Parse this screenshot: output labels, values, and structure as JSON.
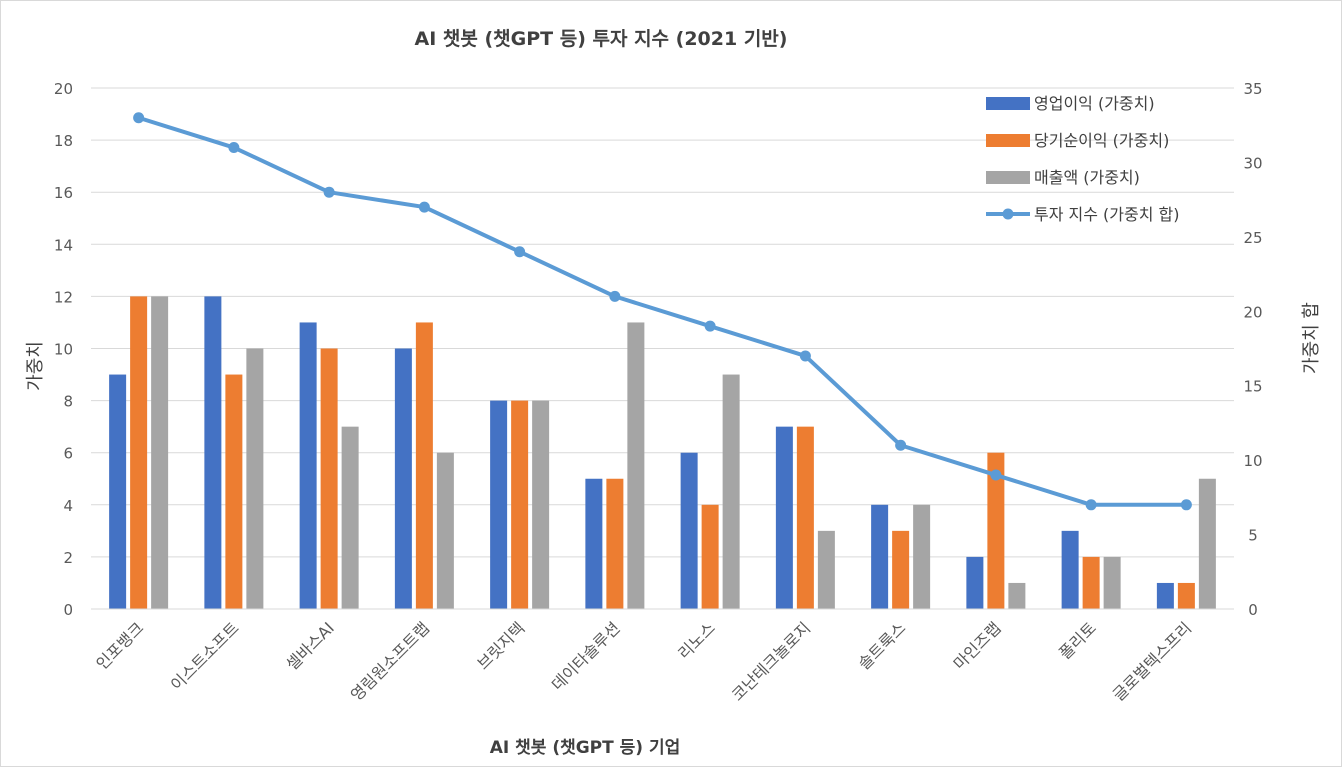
{
  "chart_data": {
    "type": "bar",
    "title": "AI 챗봇 (챗GPT 등) 투자 지수 (2021 기반)",
    "xlabel": "AI 챗봇 (챗GPT 등)  기업",
    "ylabel": "가중치",
    "y2label": "가중치 합",
    "ylim": [
      0,
      20
    ],
    "y2lim": [
      0,
      35
    ],
    "yticks": [
      0,
      2,
      4,
      6,
      8,
      10,
      12,
      14,
      16,
      18,
      20
    ],
    "y2ticks": [
      0,
      5,
      10,
      15,
      20,
      25,
      30,
      35
    ],
    "grid": true,
    "legend_position": "top-right",
    "categories": [
      "인포뱅크",
      "이스트소프트",
      "셀바스AI",
      "영림원소프트랩",
      "브릿지텍",
      "데이타솔루션",
      "리노스",
      "코난테크놀로지",
      "솔트룩스",
      "마인즈랩",
      "폴리토",
      "글로벌텍스프리"
    ],
    "series": [
      {
        "name": "영업이익 (가중치)",
        "kind": "bar",
        "axis": "left",
        "color": "#4472c4",
        "values": [
          9,
          12,
          11,
          10,
          8,
          5,
          6,
          7,
          4,
          2,
          3,
          1
        ]
      },
      {
        "name": "당기순이익 (가중치)",
        "kind": "bar",
        "axis": "left",
        "color": "#ed7d31",
        "values": [
          12,
          9,
          10,
          11,
          8,
          5,
          4,
          7,
          3,
          6,
          2,
          1
        ]
      },
      {
        "name": "매출액  (가중치)",
        "kind": "bar",
        "axis": "left",
        "color": "#a5a5a5",
        "values": [
          12,
          10,
          7,
          6,
          8,
          11,
          9,
          3,
          4,
          1,
          2,
          5
        ]
      },
      {
        "name": "투자 지수 (가중치 합)",
        "kind": "line",
        "axis": "right",
        "color": "#5b9bd5",
        "values": [
          33,
          31,
          28,
          27,
          24,
          21,
          19,
          17,
          11,
          9,
          7,
          7
        ]
      }
    ]
  }
}
